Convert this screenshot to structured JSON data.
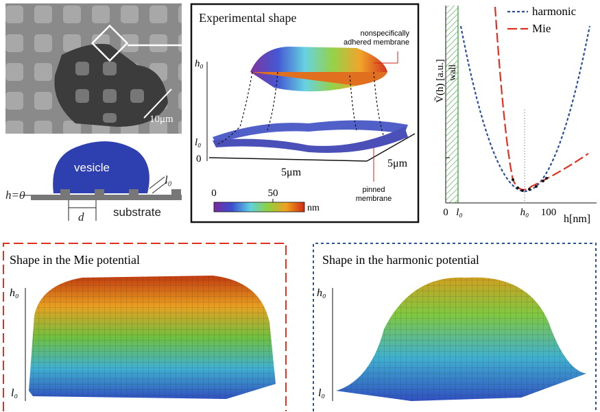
{
  "microscopy": {
    "scale_bar": "10μm"
  },
  "schematic": {
    "vesicle": "vesicle",
    "substrate": "substrate",
    "h_label": "h=0",
    "d_label": "d",
    "l0_label": "l₀"
  },
  "experimental": {
    "title": "Experimental shape",
    "annotation_top": [
      "nonspecifically",
      "adhered membrane"
    ],
    "annotation_bottom": [
      "pinned",
      "membrane"
    ],
    "axis_h0": "h₀",
    "axis_l0": "l₀",
    "axis_zero": "0",
    "x_extent": "5μm",
    "y_extent": "5μm",
    "colorbar_ticks": [
      "0",
      "50"
    ],
    "colorbar_unit": "nm"
  },
  "potential": {
    "y_label": "Ṽ(h) [a.u.]",
    "wall_label": "wall",
    "legend": [
      "harmonic",
      "Mie"
    ],
    "x_ticks": [
      "0",
      "l₀",
      "h₀",
      "100"
    ],
    "x_label": "h[nm]"
  },
  "mie_panel": {
    "title": "Shape in the Mie potential",
    "h0": "h₀",
    "l0": "l₀"
  },
  "harmonic_panel": {
    "title": "Shape in the harmonic potential",
    "h0": "h₀",
    "l0": "l₀"
  }
}
